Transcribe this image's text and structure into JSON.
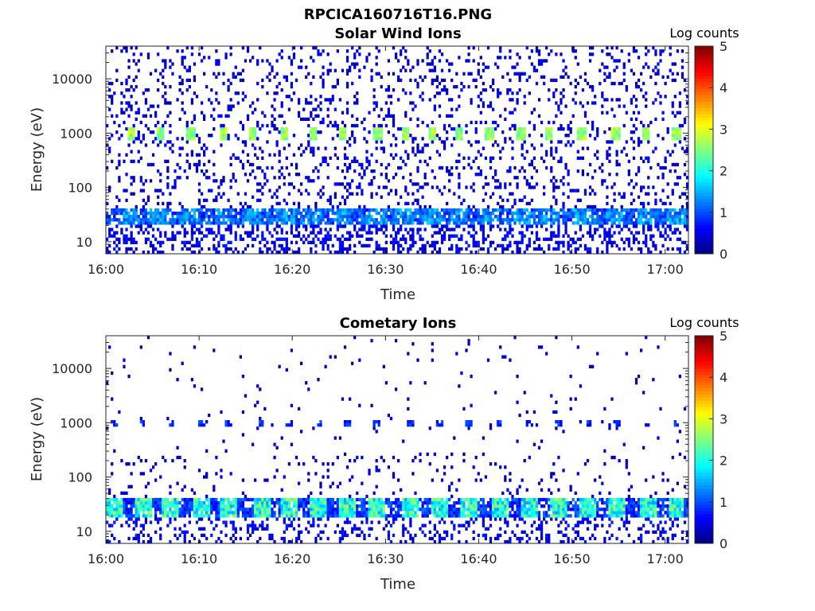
{
  "figure_title": "RPCICA160716T16.PNG",
  "colorbar": {
    "label": "Log counts",
    "ticks": [
      "0",
      "1",
      "2",
      "3",
      "4",
      "5"
    ],
    "range": [
      0,
      5
    ],
    "colormap": "jet"
  },
  "chart_data": [
    {
      "type": "heatmap",
      "title": "Solar Wind Ions",
      "xlabel": "Time",
      "ylabel": "Energy (eV)",
      "x_ticks": [
        "16:00",
        "16:10",
        "16:20",
        "16:30",
        "16:40",
        "16:50",
        "17:00"
      ],
      "x_range_minutes": [
        0,
        62.5
      ],
      "y_scale": "log",
      "y_ticks": [
        "10",
        "100",
        "1000",
        "10000"
      ],
      "y_range": [
        6,
        40000
      ],
      "cycle_centers_min": [
        2.7,
        5.8,
        9.1,
        12.6,
        15.7,
        19.2,
        22.2,
        25.4,
        29.2,
        32.1,
        35.0,
        37.9,
        41.2,
        44.5,
        47.5,
        51.1,
        54.7,
        58.0,
        61.2
      ],
      "peaks": [
        {
          "energy_eV": 1000,
          "log_counts": 2.6,
          "note": "solar wind peak at each cycle"
        },
        {
          "energy_eV": 30,
          "log_counts": 1.2,
          "note": "low-energy band"
        }
      ],
      "background_log_counts": 0.3
    },
    {
      "type": "heatmap",
      "title": "Cometary Ions",
      "xlabel": "Time",
      "ylabel": "Energy (eV)",
      "x_ticks": [
        "16:00",
        "16:10",
        "16:20",
        "16:30",
        "16:40",
        "16:50",
        "17:00"
      ],
      "x_range_minutes": [
        0,
        62.5
      ],
      "y_scale": "log",
      "y_ticks": [
        "10",
        "100",
        "1000",
        "10000"
      ],
      "y_range": [
        6,
        40000
      ],
      "cycle_centers_min": [
        0.9,
        4.0,
        7.0,
        10.2,
        13.2,
        16.7,
        19.6,
        22.9,
        26.0,
        29.1,
        32.6,
        35.8,
        39.0,
        42.3,
        45.5,
        48.6,
        51.8,
        54.8,
        58.1,
        61.2
      ],
      "peaks": [
        {
          "energy_eV": 30,
          "log_counts": 2.3,
          "note": "cometary ion band"
        },
        {
          "energy_eV": 1000,
          "log_counts": 0.8,
          "note": "faint solar wind"
        }
      ],
      "background_log_counts": 0.2
    }
  ]
}
